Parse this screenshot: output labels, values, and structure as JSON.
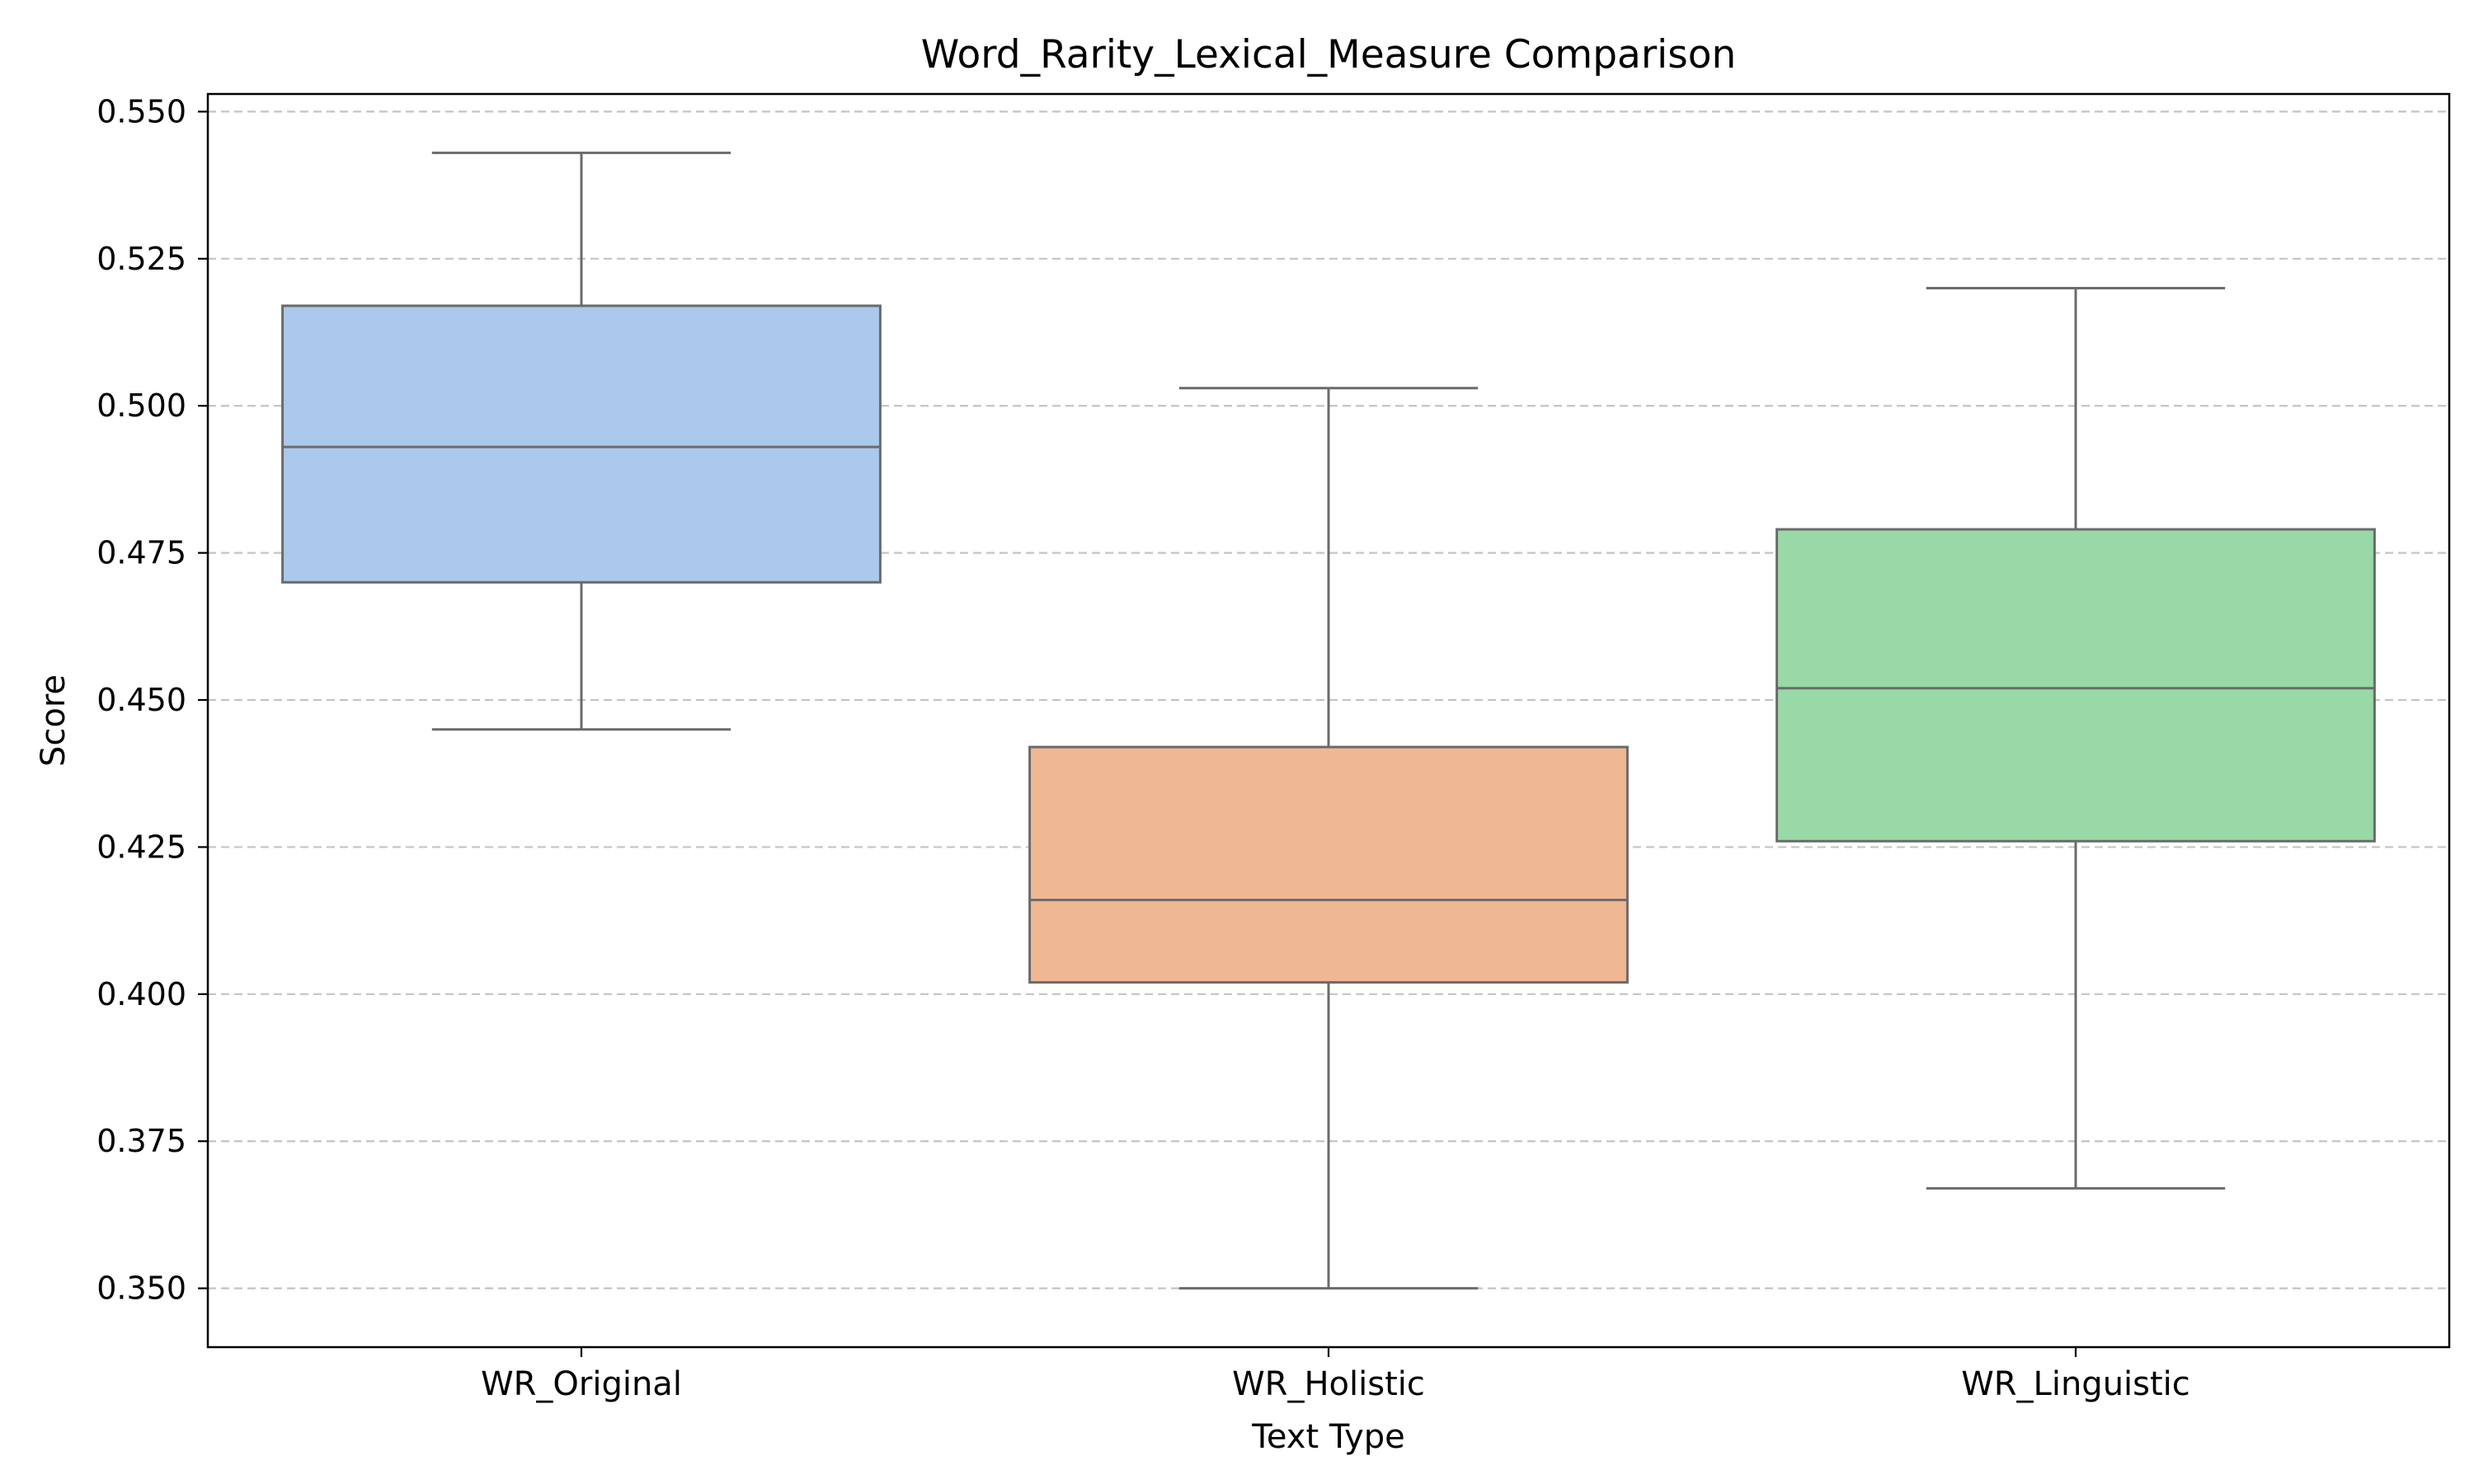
{
  "chart_data": {
    "type": "box",
    "title": "Word_Rarity_Lexical_Measure Comparison",
    "xlabel": "Text Type",
    "ylabel": "Score",
    "ylim": [
      0.34,
      0.553
    ],
    "yticks": [
      "0.350",
      "0.375",
      "0.400",
      "0.425",
      "0.450",
      "0.475",
      "0.500",
      "0.525",
      "0.550"
    ],
    "grid": "horizontal dashed",
    "categories": [
      "WR_Original",
      "WR_Holistic",
      "WR_Linguistic"
    ],
    "boxes": [
      {
        "category": "WR_Original",
        "whisker_low": 0.445,
        "q1": 0.47,
        "median": 0.493,
        "q3": 0.517,
        "whisker_high": 0.543,
        "color": "#abc9ec"
      },
      {
        "category": "WR_Holistic",
        "whisker_low": 0.35,
        "q1": 0.402,
        "median": 0.416,
        "q3": 0.442,
        "whisker_high": 0.503,
        "color": "#f0b793"
      },
      {
        "category": "WR_Linguistic",
        "whisker_low": 0.367,
        "q1": 0.426,
        "median": 0.452,
        "q3": 0.479,
        "whisker_high": 0.52,
        "color": "#98d9a7"
      }
    ],
    "line_color": "#6b6b6b"
  }
}
